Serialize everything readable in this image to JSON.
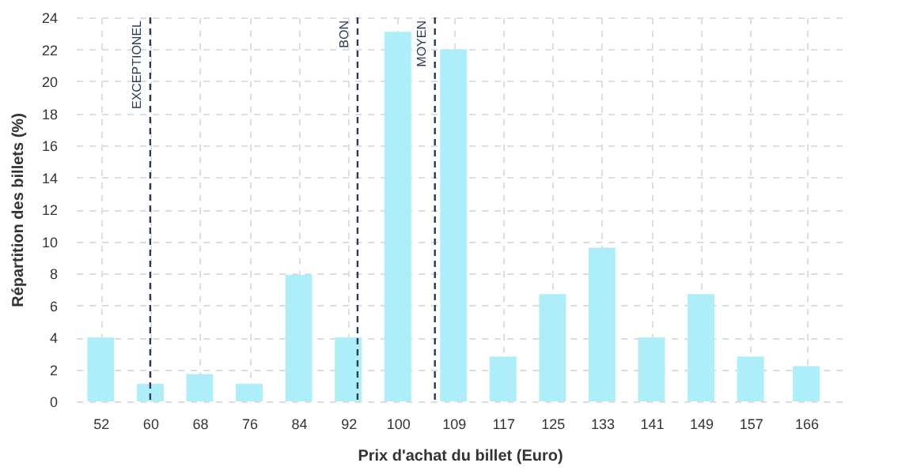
{
  "chart_data": {
    "type": "bar",
    "xlabel": "Prix d'achat du billet (Euro)",
    "ylabel": "Répartition des billets (%)",
    "x": [
      52,
      60,
      68,
      76,
      84,
      92,
      100,
      109,
      117,
      125,
      133,
      141,
      149,
      157,
      166
    ],
    "xlim": [
      48,
      172
    ],
    "xticks": [
      52,
      60,
      68,
      76,
      84,
      92,
      100,
      109,
      117,
      125,
      133,
      141,
      149,
      157,
      166
    ],
    "values": [
      4,
      1.1,
      1.7,
      1.1,
      7.9,
      4,
      23.1,
      22,
      2.8,
      6.7,
      9.6,
      4,
      6.7,
      2.8,
      2.2
    ],
    "color": "#aeeef8",
    "ylim": [
      0,
      24
    ],
    "yticks": [
      0,
      2,
      4,
      6,
      8,
      10,
      12,
      14,
      16,
      18,
      20,
      22,
      24
    ],
    "grid": true,
    "ref_lines": [
      {
        "axis": "x",
        "value": 60,
        "label": "EXCEPTIONEL",
        "color": "#2b3a55",
        "line_style": "dashed"
      },
      {
        "axis": "x",
        "value": 93.5,
        "label": "BON",
        "color": "#2b3a55",
        "line_style": "dashed"
      },
      {
        "axis": "x",
        "value": 106,
        "label": "MOYEN",
        "color": "#2b3a55",
        "line_style": "dashed"
      }
    ]
  }
}
